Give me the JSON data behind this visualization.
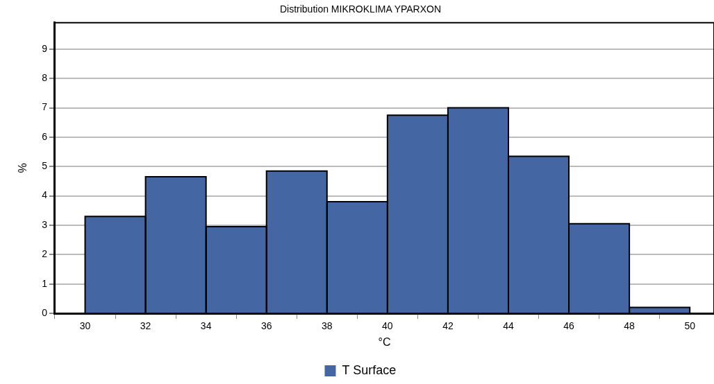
{
  "chart_data": {
    "type": "histogram",
    "title": "Distribution MIKROKLIMA YPARXON",
    "xlabel": "°C",
    "ylabel": "%",
    "bins": [
      30,
      32,
      34,
      36,
      38,
      40,
      42,
      44,
      46,
      48,
      50
    ],
    "series": [
      {
        "name": "T Surface",
        "color": "#4466a3",
        "values": [
          3.3,
          4.65,
          2.95,
          4.85,
          3.8,
          6.75,
          7.0,
          5.35,
          3.05,
          0.2
        ]
      }
    ],
    "xlim": [
      29,
      50.8
    ],
    "xticks": [
      30,
      32,
      34,
      36,
      38,
      40,
      42,
      44,
      46,
      48,
      50
    ],
    "ylim": [
      0,
      9.9
    ],
    "yticks": [
      0,
      1,
      2,
      3,
      4,
      5,
      6,
      7,
      8,
      9
    ],
    "grid": "y",
    "legend": "bottom"
  }
}
